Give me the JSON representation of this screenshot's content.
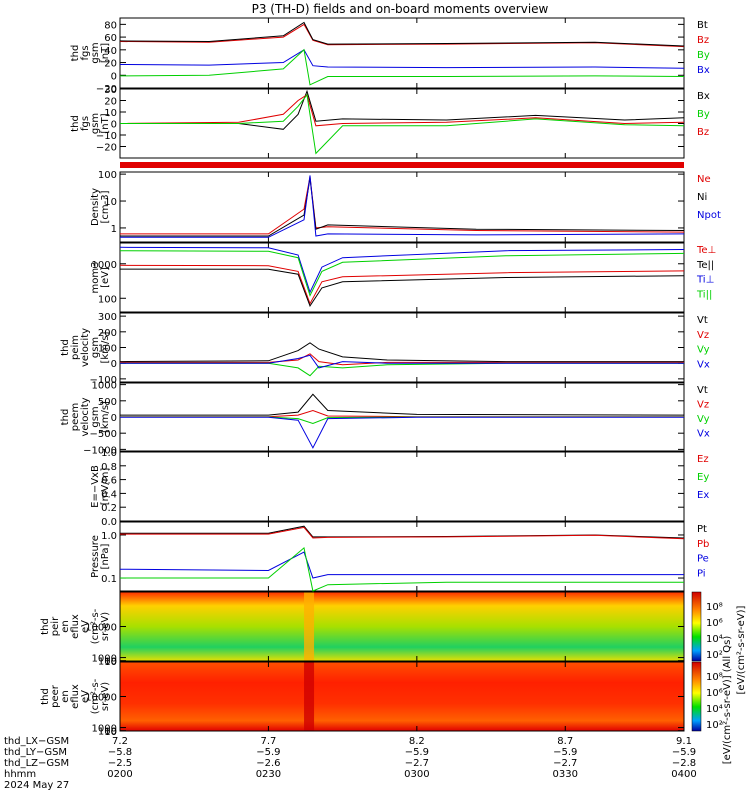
{
  "title": "P3 (TH-D) fields and on-board moments overview",
  "colors": {
    "black": "#000000",
    "red": "#e00000",
    "green": "#00d000",
    "blue": "#0000e0",
    "axis": "#000000"
  },
  "chart_data": [
    {
      "type": "line",
      "ylabel": [
        "thd",
        "fgs",
        "gsm",
        "[nT]"
      ],
      "ylim": [
        -20,
        90
      ],
      "yticks": [
        80,
        60,
        40,
        20,
        0,
        -20
      ],
      "yticklabels": [
        "80",
        "60",
        "40",
        "20",
        "0",
        "−20"
      ],
      "legend": [
        {
          "name": "Bt",
          "color": "black"
        },
        {
          "name": "Bz",
          "color": "red"
        },
        {
          "name": "By",
          "color": "green"
        },
        {
          "name": "Bx",
          "color": "blue"
        }
      ],
      "series": [
        {
          "color": "red",
          "x": [
            7.2,
            7.5,
            7.75,
            7.82,
            7.85,
            7.9,
            8.3,
            8.8,
            9.1
          ],
          "y": [
            53,
            52,
            60,
            80,
            55,
            48,
            49,
            51,
            45
          ]
        },
        {
          "color": "black",
          "x": [
            7.2,
            7.5,
            7.75,
            7.82,
            7.85,
            7.9,
            8.3,
            8.8,
            9.1
          ],
          "y": [
            54,
            53,
            62,
            83,
            56,
            49,
            50,
            52,
            46
          ]
        },
        {
          "color": "blue",
          "x": [
            7.2,
            7.5,
            7.75,
            7.82,
            7.85,
            7.9,
            8.3,
            8.8,
            9.1
          ],
          "y": [
            17,
            16,
            20,
            40,
            15,
            13,
            12,
            13,
            11
          ]
        },
        {
          "color": "green",
          "x": [
            7.2,
            7.5,
            7.75,
            7.82,
            7.84,
            7.9,
            8.3,
            8.8,
            9.1
          ],
          "y": [
            -1,
            0,
            10,
            40,
            -15,
            -2,
            -2,
            -1,
            -2
          ]
        }
      ]
    },
    {
      "type": "line",
      "ylabel": [
        "thd",
        "fgs",
        "gsm",
        "[nT]"
      ],
      "ylim": [
        -30,
        30
      ],
      "yticks": [
        30,
        20,
        10,
        0,
        -10,
        -20
      ],
      "yticklabels": [
        "30",
        "20",
        "10",
        "0",
        "−10",
        "−20"
      ],
      "legend": [
        {
          "name": "Bx",
          "color": "black"
        },
        {
          "name": "By",
          "color": "green"
        },
        {
          "name": "Bz",
          "color": "red"
        }
      ],
      "series": [
        {
          "color": "black",
          "x": [
            7.2,
            7.6,
            7.75,
            7.8,
            7.83,
            7.86,
            7.95,
            8.3,
            8.6,
            8.9,
            9.1
          ],
          "y": [
            0,
            0,
            -5,
            8,
            28,
            2,
            4,
            3,
            7,
            3,
            5
          ]
        },
        {
          "color": "red",
          "x": [
            7.2,
            7.6,
            7.75,
            7.8,
            7.83,
            7.86,
            7.95,
            8.3,
            8.6,
            8.9,
            9.1
          ],
          "y": [
            0,
            1,
            8,
            20,
            25,
            -2,
            0,
            1,
            5,
            0,
            1
          ]
        },
        {
          "color": "green",
          "x": [
            7.2,
            7.6,
            7.75,
            7.8,
            7.83,
            7.86,
            7.95,
            8.3,
            8.6,
            8.9,
            9.1
          ],
          "y": [
            0,
            0,
            2,
            15,
            25,
            -26,
            -2,
            -2,
            4,
            -1,
            -2
          ]
        }
      ]
    },
    {
      "type": "line",
      "log": true,
      "ylabel": [
        "Density",
        "[cm-3]"
      ],
      "ylim": [
        0.3,
        120
      ],
      "yticks": [
        100,
        10,
        1
      ],
      "yticklabels": [
        "100",
        "10",
        "1"
      ],
      "legend": [
        {
          "name": "Ne",
          "color": "red"
        },
        {
          "name": "Ni",
          "color": "black"
        },
        {
          "name": "Npot",
          "color": "blue"
        }
      ],
      "series": [
        {
          "color": "red",
          "x": [
            7.2,
            7.7,
            7.82,
            7.84,
            7.86,
            7.9,
            8.4,
            9.1
          ],
          "y": [
            0.6,
            0.6,
            5,
            80,
            1,
            1.1,
            0.8,
            0.7
          ]
        },
        {
          "color": "black",
          "x": [
            7.2,
            7.7,
            7.82,
            7.84,
            7.86,
            7.9,
            8.4,
            9.1
          ],
          "y": [
            0.5,
            0.5,
            3,
            70,
            0.9,
            1.3,
            0.9,
            0.8
          ]
        },
        {
          "color": "blue",
          "x": [
            7.2,
            7.7,
            7.82,
            7.84,
            7.86,
            7.9,
            8.4,
            9.1
          ],
          "y": [
            0.45,
            0.45,
            2,
            90,
            0.5,
            0.6,
            0.55,
            0.6
          ]
        }
      ]
    },
    {
      "type": "line",
      "log": true,
      "ylabel": [
        "mom3",
        "[eV]"
      ],
      "ylim": [
        40,
        4000
      ],
      "yticks": [
        1000,
        100
      ],
      "yticklabels": [
        "1000",
        "100"
      ],
      "legend": [
        {
          "name": "Te⊥",
          "color": "red"
        },
        {
          "name": "Te||",
          "color": "black"
        },
        {
          "name": "Ti⊥",
          "color": "blue"
        },
        {
          "name": "Ti||",
          "color": "green"
        }
      ],
      "series": [
        {
          "color": "blue",
          "x": [
            7.2,
            7.7,
            7.8,
            7.84,
            7.88,
            7.95,
            8.5,
            9.1
          ],
          "y": [
            3000,
            2900,
            1800,
            150,
            800,
            1500,
            2400,
            2600
          ]
        },
        {
          "color": "green",
          "x": [
            7.2,
            7.7,
            7.8,
            7.84,
            7.88,
            7.95,
            8.5,
            9.1
          ],
          "y": [
            2400,
            2300,
            1500,
            120,
            600,
            1100,
            1700,
            2000
          ]
        },
        {
          "color": "red",
          "x": [
            7.2,
            7.7,
            7.8,
            7.84,
            7.88,
            7.95,
            8.5,
            9.1
          ],
          "y": [
            900,
            880,
            600,
            70,
            300,
            420,
            550,
            620
          ]
        },
        {
          "color": "black",
          "x": [
            7.2,
            7.7,
            7.8,
            7.84,
            7.88,
            7.95,
            8.5,
            9.1
          ],
          "y": [
            700,
            690,
            500,
            60,
            200,
            300,
            400,
            450
          ]
        }
      ]
    },
    {
      "type": "line",
      "ylabel": [
        "thd",
        "peim",
        "velocity",
        "gsm",
        "[km/s]"
      ],
      "ylim": [
        -120,
        320
      ],
      "yticks": [
        300,
        200,
        100,
        0,
        -100
      ],
      "yticklabels": [
        "300",
        "200",
        "100",
        "0",
        "−100"
      ],
      "legend": [
        {
          "name": "Vt",
          "color": "black"
        },
        {
          "name": "Vz",
          "color": "red"
        },
        {
          "name": "Vy",
          "color": "green"
        },
        {
          "name": "Vx",
          "color": "blue"
        }
      ],
      "series": [
        {
          "color": "black",
          "x": [
            7.2,
            7.7,
            7.8,
            7.84,
            7.87,
            7.95,
            8.1,
            8.5,
            9.1
          ],
          "y": [
            10,
            15,
            80,
            130,
            90,
            40,
            20,
            10,
            10
          ]
        },
        {
          "color": "red",
          "x": [
            7.2,
            7.7,
            7.8,
            7.84,
            7.87,
            7.95,
            8.1,
            8.5,
            9.1
          ],
          "y": [
            5,
            5,
            20,
            60,
            10,
            -10,
            5,
            5,
            5
          ]
        },
        {
          "color": "green",
          "x": [
            7.2,
            7.7,
            7.8,
            7.84,
            7.87,
            7.95,
            8.1,
            8.5,
            9.1
          ],
          "y": [
            0,
            0,
            -30,
            -80,
            -20,
            -30,
            -10,
            0,
            0
          ]
        },
        {
          "color": "blue",
          "x": [
            7.2,
            7.7,
            7.8,
            7.84,
            7.87,
            7.95,
            8.1,
            8.5,
            9.1
          ],
          "y": [
            0,
            0,
            30,
            50,
            -30,
            10,
            0,
            0,
            0
          ]
        }
      ]
    },
    {
      "type": "line",
      "ylabel": [
        "thd",
        "peem",
        "velocity",
        "gsm",
        "[km/s]"
      ],
      "ylim": [
        -1050,
        1050
      ],
      "yticks": [
        1000,
        500,
        0,
        -500,
        -1000
      ],
      "yticklabels": [
        "1000",
        "500",
        "0",
        "−500",
        "−1000"
      ],
      "legend": [
        {
          "name": "Vt",
          "color": "black"
        },
        {
          "name": "Vz",
          "color": "red"
        },
        {
          "name": "Vy",
          "color": "green"
        },
        {
          "name": "Vx",
          "color": "blue"
        }
      ],
      "series": [
        {
          "color": "black",
          "x": [
            7.2,
            7.7,
            7.8,
            7.85,
            7.9,
            8.2,
            9.1
          ],
          "y": [
            60,
            60,
            150,
            700,
            200,
            80,
            60
          ]
        },
        {
          "color": "red",
          "x": [
            7.2,
            7.7,
            7.8,
            7.85,
            7.9,
            8.2,
            9.1
          ],
          "y": [
            10,
            10,
            60,
            200,
            30,
            10,
            10
          ]
        },
        {
          "color": "green",
          "x": [
            7.2,
            7.7,
            7.8,
            7.85,
            7.9,
            8.2,
            9.1
          ],
          "y": [
            0,
            0,
            -50,
            -200,
            -20,
            0,
            0
          ]
        },
        {
          "color": "blue",
          "x": [
            7.2,
            7.7,
            7.8,
            7.85,
            7.9,
            8.2,
            9.1
          ],
          "y": [
            -10,
            -10,
            -100,
            -950,
            -50,
            -10,
            -10
          ]
        }
      ]
    },
    {
      "type": "line",
      "ylabel": [
        "E=−VxB",
        "[mV/m]"
      ],
      "ylim": [
        0,
        1
      ],
      "yticks": [
        1.0,
        0.8,
        0.6,
        0.4,
        0.2,
        0.0
      ],
      "yticklabels": [
        "1.0",
        "0.8",
        "0.6",
        "0.4",
        "0.2",
        "0.0"
      ],
      "legend": [
        {
          "name": "Ez",
          "color": "red"
        },
        {
          "name": "Ey",
          "color": "green"
        },
        {
          "name": "Ex",
          "color": "blue"
        }
      ],
      "series": []
    },
    {
      "type": "line",
      "log": true,
      "ylabel": [
        "Pressure",
        "[nPa]"
      ],
      "ylim": [
        0.05,
        2.0
      ],
      "yticks": [
        1.0,
        0.1
      ],
      "yticklabels": [
        "1.0",
        "0.1"
      ],
      "legend": [
        {
          "name": "Pt",
          "color": "black"
        },
        {
          "name": "Pb",
          "color": "red"
        },
        {
          "name": "Pe",
          "color": "blue"
        },
        {
          "name": "Pi",
          "color": "blue"
        }
      ],
      "series": [
        {
          "color": "black",
          "x": [
            7.2,
            7.7,
            7.82,
            7.85,
            7.9,
            8.3,
            8.8,
            9.1
          ],
          "y": [
            1.1,
            1.1,
            1.6,
            0.9,
            0.9,
            0.92,
            1.0,
            0.85
          ]
        },
        {
          "color": "red",
          "x": [
            7.2,
            7.7,
            7.82,
            7.85,
            7.9,
            8.3,
            8.8,
            9.1
          ],
          "y": [
            1.05,
            1.05,
            1.5,
            0.85,
            0.88,
            0.9,
            0.98,
            0.82
          ]
        },
        {
          "color": "blue",
          "x": [
            7.2,
            7.7,
            7.82,
            7.85,
            7.9,
            8.3,
            8.8,
            9.1
          ],
          "y": [
            0.16,
            0.15,
            0.4,
            0.1,
            0.12,
            0.12,
            0.12,
            0.12
          ]
        },
        {
          "color": "green",
          "x": [
            7.2,
            7.7,
            7.82,
            7.85,
            7.9,
            8.3,
            8.8,
            9.1
          ],
          "y": [
            0.1,
            0.1,
            0.5,
            0.05,
            0.07,
            0.08,
            0.08,
            0.08
          ]
        }
      ]
    },
    {
      "type": "heatmap",
      "ylabel": [
        "thd",
        "peir",
        "en",
        "eflux",
        "eV",
        "(cm²-s-",
        "sr-eV)"
      ],
      "ylim": [
        5,
        20000
      ],
      "yticks": [
        10000,
        1000,
        100,
        10
      ],
      "yticklabels": [
        "10000",
        "1000",
        "100",
        "10"
      ],
      "colorbar_ticks": [
        "10⁸",
        "10⁶",
        "10⁴",
        "10²"
      ]
    },
    {
      "type": "heatmap",
      "ylabel": [
        "thd",
        "peer",
        "en",
        "eflux",
        "eV",
        "(cm²-s-",
        "sr-eV)"
      ],
      "ylim": [
        5,
        20000
      ],
      "yticks": [
        10000,
        1000,
        100,
        10
      ],
      "yticklabels": [
        "10000",
        "1000",
        "100",
        "10"
      ],
      "colorbar_ticks": [
        "10⁸",
        "10⁶",
        "10⁴",
        "10²"
      ]
    }
  ],
  "colorbar_label": "[eV/(cm²-s-sr-eV)] (All Qs)",
  "colorbar_label_2": "[eV/(cm²-s-sr-eV)]",
  "x_axis": {
    "rows": [
      {
        "label": "thd_LX−GSM",
        "values": [
          "7.2",
          "7.7",
          "8.2",
          "8.7",
          "9.1"
        ]
      },
      {
        "label": "thd_LY−GSM",
        "values": [
          "−5.8",
          "−5.9",
          "−5.9",
          "−5.9",
          "−5.9"
        ]
      },
      {
        "label": "thd_LZ−GSM",
        "values": [
          "−2.5",
          "−2.6",
          "−2.7",
          "−2.7",
          "−2.8"
        ]
      },
      {
        "label": "hhmm",
        "values": [
          "0200",
          "0230",
          "0300",
          "0330",
          "0400"
        ]
      }
    ],
    "date": "2024 May 27",
    "tick_positions": [
      7.2,
      7.7,
      8.2,
      8.7,
      9.1
    ]
  }
}
